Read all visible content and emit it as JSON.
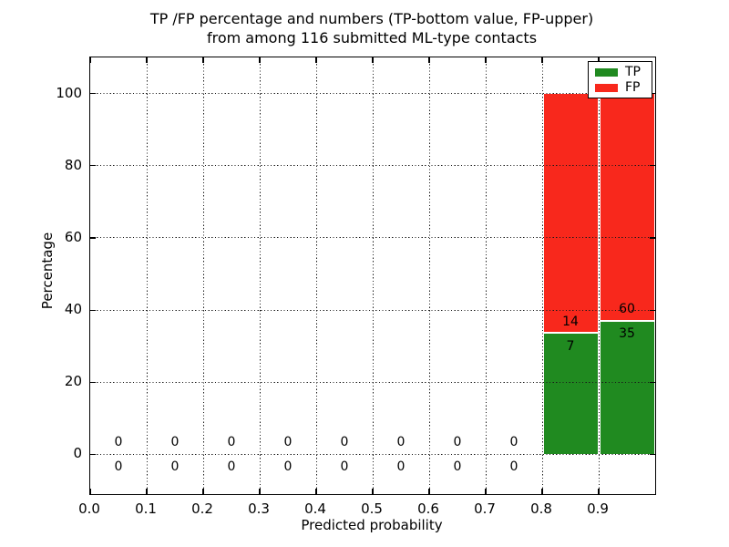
{
  "figure": {
    "background": "#ffffff"
  },
  "chart_data": {
    "type": "bar",
    "stacked": true,
    "unit": "percent of bin total",
    "title_line1": "TP /FP percentage and numbers (TP-bottom value, FP-upper)",
    "title_line2": "from among 116 submitted ML-type contacts",
    "total_contacts": 116,
    "xlabel": "Predicted probability",
    "ylabel": "Percentage",
    "xlim": [
      0.0,
      1.0
    ],
    "ylim": [
      -11,
      110
    ],
    "grid": true,
    "grid_style": "dotted",
    "legend_position": "upper right",
    "x_tick_labels": [
      "0.0",
      "0.1",
      "0.2",
      "0.3",
      "0.4",
      "0.5",
      "0.6",
      "0.7",
      "0.8",
      "0.9"
    ],
    "y_ticks": [
      0,
      20,
      40,
      60,
      80,
      100
    ],
    "bin_width": 0.1,
    "bin_starts": [
      0.0,
      0.1,
      0.2,
      0.3,
      0.4,
      0.5,
      0.6,
      0.7,
      0.8,
      0.9
    ],
    "series": [
      {
        "name": "TP",
        "color": "#208a20",
        "counts": [
          0,
          0,
          0,
          0,
          0,
          0,
          0,
          0,
          7,
          35
        ]
      },
      {
        "name": "FP",
        "color": "#f8281c",
        "counts": [
          0,
          0,
          0,
          0,
          0,
          0,
          0,
          0,
          14,
          60
        ]
      }
    ],
    "bar_percentages": {
      "tp_pct": [
        0,
        0,
        0,
        0,
        0,
        0,
        0,
        0,
        33.33,
        36.84
      ],
      "fp_pct": [
        0,
        0,
        0,
        0,
        0,
        0,
        0,
        0,
        66.67,
        63.16
      ]
    },
    "annotation_offset_pct": 3.5,
    "divider_color": "#ffffff",
    "axis_color": "#000000"
  }
}
